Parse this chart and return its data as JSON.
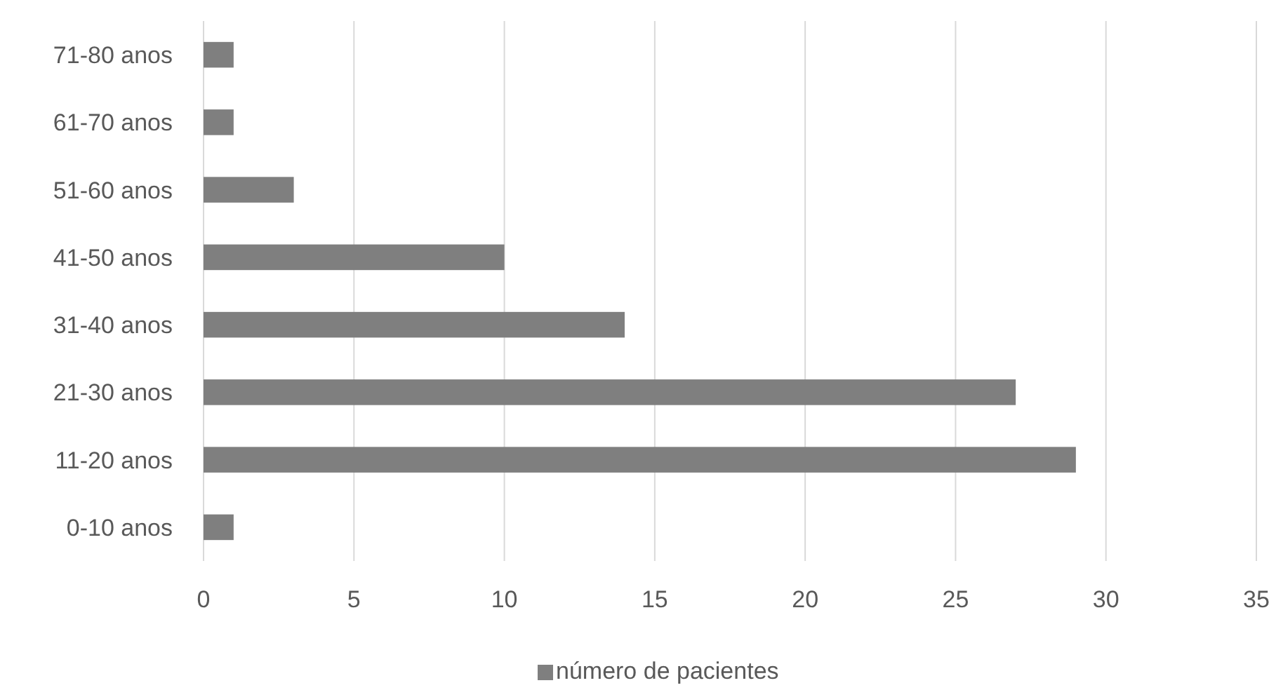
{
  "chart_data": {
    "type": "bar",
    "orientation": "horizontal",
    "categories": [
      "71-80 anos",
      "61-70 anos",
      "51-60 anos",
      "41-50 anos",
      "31-40 anos",
      "21-30 anos",
      "11-20 anos",
      "0-10 anos"
    ],
    "series": [
      {
        "name": "número de pacientes",
        "color": "#7f7f7f",
        "values": [
          1,
          1,
          3,
          10,
          14,
          27,
          29,
          1
        ]
      }
    ],
    "xlim": [
      0,
      35
    ],
    "xticks": [
      0,
      5,
      10,
      15,
      20,
      25,
      30,
      35
    ],
    "grid": "x",
    "legend": "bottom"
  }
}
